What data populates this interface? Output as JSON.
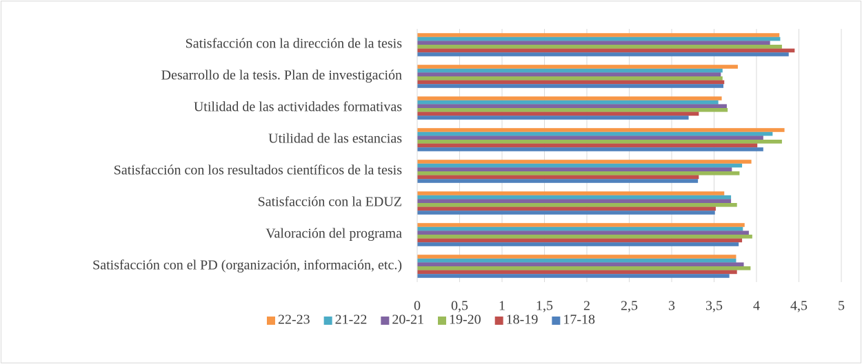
{
  "chart_data": {
    "type": "hbar",
    "categories": [
      "Satisfacción con la dirección de la tesis",
      "Desarrollo de la tesis. Plan de investigación",
      "Utilidad de las actividades formativas",
      "Utilidad de las estancias",
      "Satisfacción con los resultados científicos de la tesis",
      "Satisfacción con la EDUZ",
      "Valoración del programa",
      "Satisfacción con el PD (organización, información, etc.)"
    ],
    "series": [
      {
        "name": "22-23",
        "color": "#f79646",
        "values": [
          4.27,
          3.78,
          3.59,
          4.33,
          3.94,
          3.62,
          3.86,
          3.76
        ]
      },
      {
        "name": "21-22",
        "color": "#4bacc6",
        "values": [
          4.28,
          3.6,
          3.55,
          4.19,
          3.83,
          3.7,
          3.84,
          3.76
        ]
      },
      {
        "name": "20-21",
        "color": "#8064a2",
        "values": [
          4.16,
          3.58,
          3.65,
          4.08,
          3.71,
          3.7,
          3.91,
          3.85
        ]
      },
      {
        "name": "19-20",
        "color": "#9bbb59",
        "values": [
          4.3,
          3.6,
          3.66,
          4.3,
          3.8,
          3.77,
          3.95,
          3.93
        ]
      },
      {
        "name": "18-19",
        "color": "#c0504d",
        "values": [
          4.45,
          3.62,
          3.32,
          4.01,
          3.32,
          3.52,
          3.83,
          3.77
        ]
      },
      {
        "name": "17-18",
        "color": "#4f81bd",
        "values": [
          4.38,
          3.61,
          3.2,
          4.08,
          3.31,
          3.51,
          3.79,
          3.68
        ]
      }
    ],
    "xlim": [
      0,
      5
    ],
    "xticks": [
      0,
      {
        "value": 0.5,
        "label": "0,5"
      },
      1,
      {
        "value": 1.5,
        "label": "1,5"
      },
      2,
      {
        "value": 2.5,
        "label": "2,5"
      },
      3,
      {
        "value": 3.5,
        "label": "3,5"
      },
      4,
      {
        "value": 4.5,
        "label": "4,5"
      },
      5
    ],
    "grid": true,
    "legend": "bottom"
  }
}
